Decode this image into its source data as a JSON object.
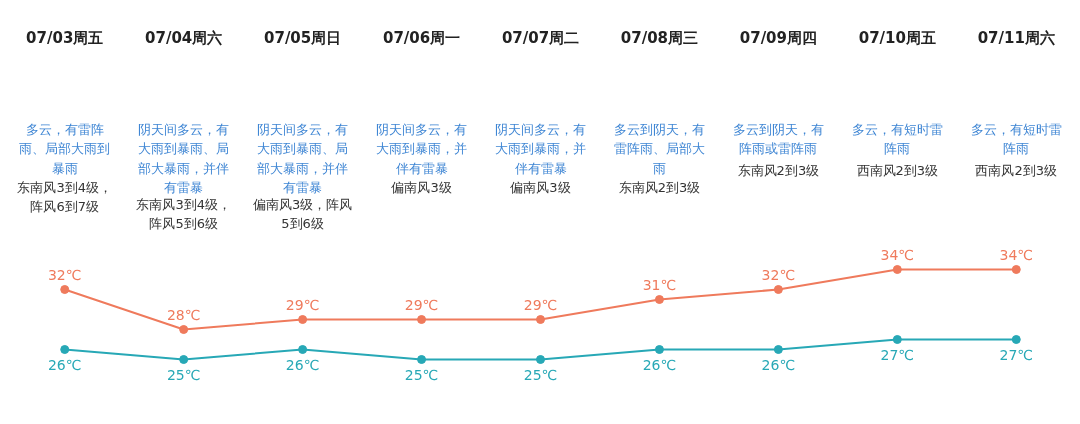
{
  "chart_data": {
    "type": "line",
    "categories": [
      "07/03周五",
      "07/04周六",
      "07/05周日",
      "07/06周一",
      "07/07周二",
      "07/08周三",
      "07/09周四",
      "07/10周五",
      "07/11周六"
    ],
    "series": [
      {
        "color": "#ef7a5c",
        "values": [
          32,
          28,
          29,
          29,
          29,
          31,
          32,
          34,
          34
        ],
        "value_labels": [
          "32℃",
          "28℃",
          "29℃",
          "29℃",
          "29℃",
          "31℃",
          "32℃",
          "34℃",
          "34℃"
        ]
      },
      {
        "color": "#27a8b6",
        "values": [
          26,
          25,
          26,
          25,
          25,
          26,
          26,
          27,
          27
        ],
        "value_labels": [
          "26℃",
          "25℃",
          "26℃",
          "25℃",
          "25℃",
          "26℃",
          "26℃",
          "27℃",
          "27℃"
        ]
      }
    ],
    "annotations": [
      "多云，有雷阵雨、局部大雨到暴雨",
      "东南风3到4级，阵风6到7级",
      "阴天间多云，有大雨到暴雨、局部大暴雨，并伴有雷暴",
      "东南风3到4级，阵风5到6级",
      "阴天间多云，有大雨到暴雨、局部大暴雨，并伴有雷暴",
      "偏南风3级，阵风5到6级",
      "阴天间多云，有大雨到暴雨，并伴有雷暴",
      "偏南风3级",
      "阴天间多云，有大雨到暴雨，并伴有雷暴",
      "偏南风3级",
      "多云到阴天，有雷阵雨、局部大雨",
      "东南风2到3级",
      "多云到阴天，有阵雨或雷阵雨",
      "东南风2到3级",
      "多云，有短时雷阵雨",
      "西南风2到3级",
      "多云，有短时雷阵雨",
      "西南风2到3级"
    ],
    "marker": "circle"
  }
}
